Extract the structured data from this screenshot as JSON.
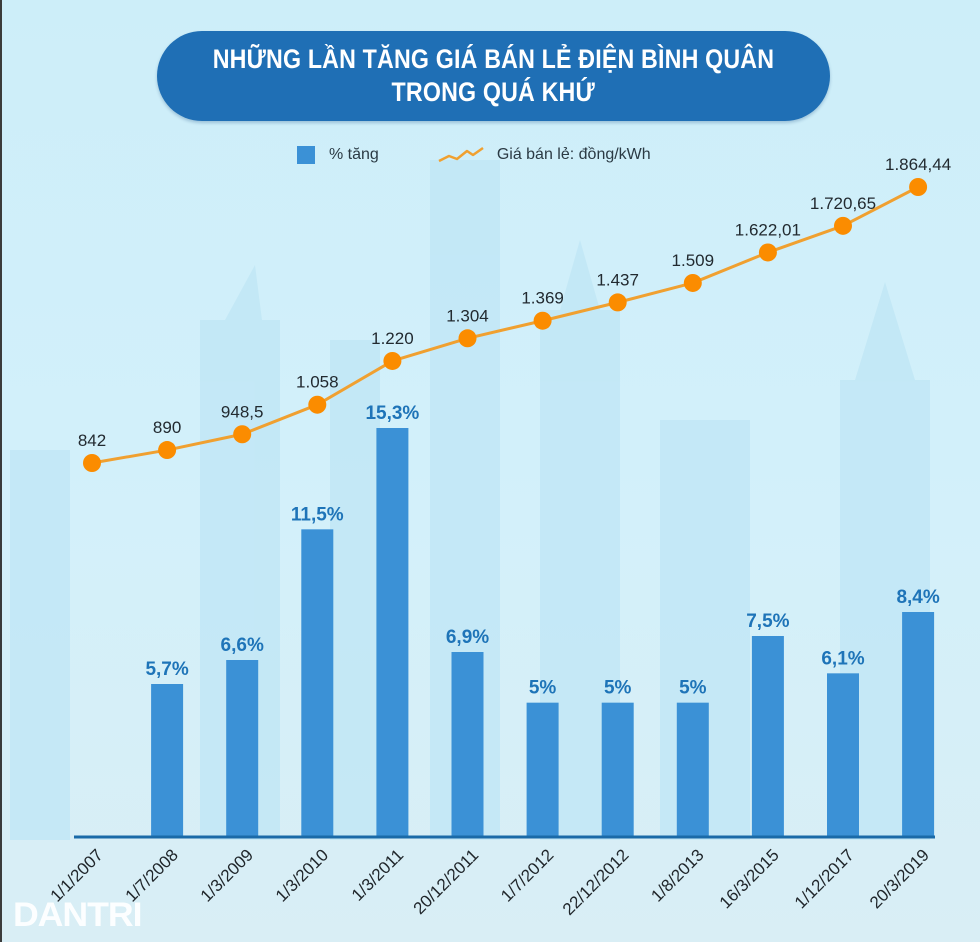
{
  "header": {
    "title_line1": "NHỮNG LẦN TĂNG GIÁ BÁN LẺ ĐIỆN BÌNH QUÂN",
    "title_line2": "TRONG QUÁ KHỨ"
  },
  "legend": {
    "bar_label": "% tăng",
    "line_label": "Giá bán lẻ: đồng/kWh"
  },
  "colors": {
    "bar": "#3b91d6",
    "bar_label": "#1e74b8",
    "line": "#f0a030",
    "marker": "#fb8c00",
    "title_bg": "#1f6fb5",
    "baseline": "#1a6aa8"
  },
  "watermark": "DANTRI",
  "chart_data": {
    "type": "bar+line",
    "title": "NHỮNG LẦN TĂNG GIÁ BÁN LẺ ĐIỆN BÌNH QUÂN TRONG QUÁ KHỨ",
    "categories": [
      "1/1/2007",
      "1/7/2008",
      "1/3/2009",
      "1/3/2010",
      "1/3/2011",
      "20/12/2011",
      "1/7/2012",
      "22/12/2012",
      "1/8/2013",
      "16/3/2015",
      "1/12/2017",
      "20/3/2019"
    ],
    "series": [
      {
        "name": "% tăng",
        "type": "bar",
        "values": [
          null,
          5.7,
          6.6,
          11.5,
          15.3,
          6.9,
          5,
          5,
          5,
          7.5,
          6.1,
          8.4
        ],
        "labels": [
          "",
          "5,7%",
          "6,6%",
          "11,5%",
          "15,3%",
          "6,9%",
          "5%",
          "5%",
          "5%",
          "7,5%",
          "6,1%",
          "8,4%"
        ]
      },
      {
        "name": "Giá bán lẻ: đồng/kWh",
        "type": "line",
        "values": [
          842,
          890,
          948.5,
          1058,
          1220,
          1304,
          1369,
          1437,
          1509,
          1622.01,
          1720.65,
          1864.44
        ],
        "labels": [
          "842",
          "890",
          "948,5",
          "1.058",
          "1.220",
          "1.304",
          "1.369",
          "1.437",
          "1.509",
          "1.622,01",
          "1.720,65",
          "1.864,44"
        ]
      }
    ],
    "xlabel": "",
    "ylabel": "",
    "grid": false,
    "legend_position": "top"
  }
}
